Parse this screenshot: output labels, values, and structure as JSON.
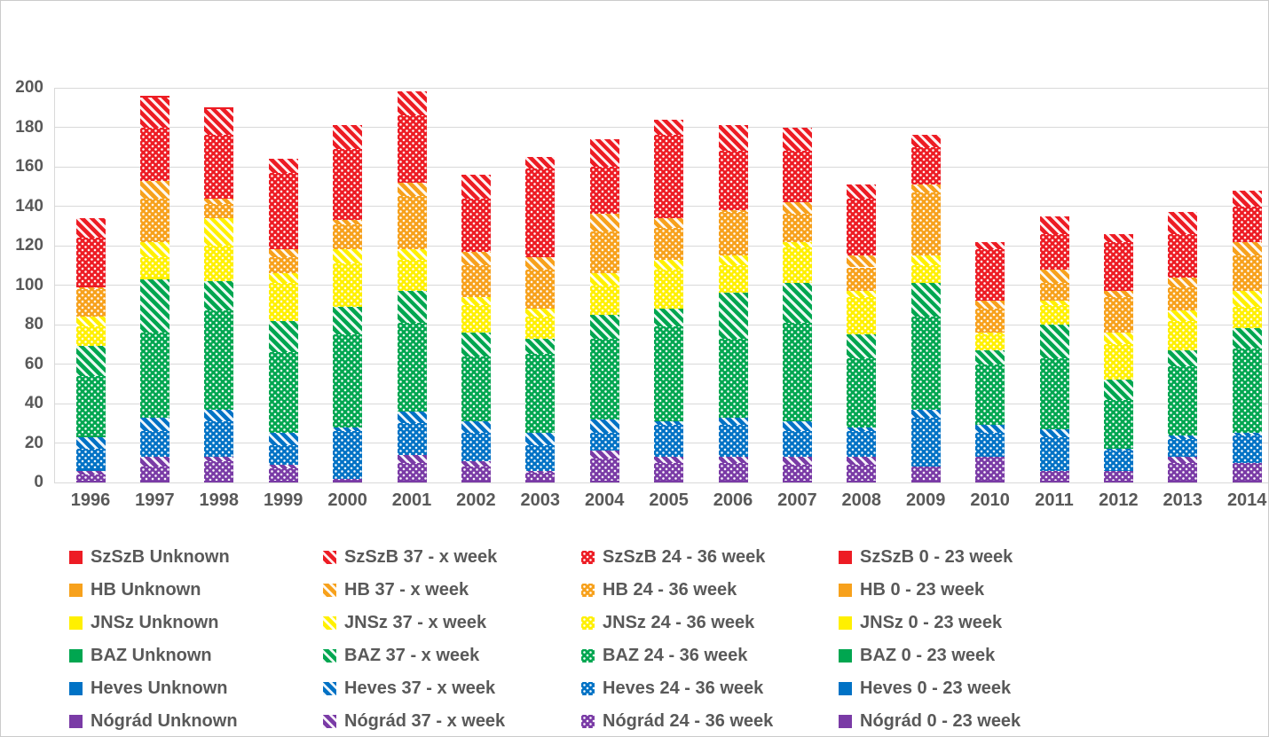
{
  "chart_data": {
    "type": "bar",
    "stacked": true,
    "title": "",
    "xlabel": "",
    "ylabel": "",
    "x": [
      "1996",
      "1997",
      "1998",
      "1999",
      "2000",
      "2001",
      "2002",
      "2003",
      "2004",
      "2005",
      "2006",
      "2007",
      "2008",
      "2009",
      "2010",
      "2011",
      "2012",
      "2013",
      "2014"
    ],
    "ylim": [
      0,
      200
    ],
    "ytick_step": 20,
    "y_ticks": [
      "0",
      "20",
      "40",
      "60",
      "80",
      "100",
      "120",
      "140",
      "160",
      "180",
      "200"
    ],
    "grid": true,
    "legend_position": "bottom",
    "segment_labels": {
      "unknown": "Unknown",
      "w37x": "37 - x week",
      "w2436": "24 - 36 week",
      "w023": "0 - 23 week"
    },
    "legend_column_order": [
      "unknown",
      "w37x",
      "w2436",
      "w023"
    ],
    "segment_order_bottom_up": [
      "w023",
      "w2436",
      "w37x",
      "unknown"
    ],
    "patterns": {
      "unknown": "solid",
      "w37x": "stripes",
      "w2436": "dots",
      "w023": "solid"
    },
    "counties": [
      {
        "id": "szszb",
        "label": "SzSzB",
        "color": "#ed1c24",
        "values": {
          "unknown": [
            0,
            1,
            1,
            0,
            0,
            0,
            0,
            0,
            0,
            0,
            0,
            0,
            0,
            0,
            0,
            0,
            0,
            0,
            0
          ],
          "w37x": [
            10,
            15,
            13,
            7,
            12,
            12,
            12,
            6,
            14,
            8,
            13,
            12,
            7,
            6,
            4,
            9,
            4,
            11,
            8
          ],
          "w2436": [
            24,
            27,
            32,
            39,
            36,
            34,
            27,
            45,
            24,
            42,
            30,
            26,
            29,
            19,
            26,
            18,
            25,
            22,
            18
          ],
          "w023": [
            1,
            0,
            0,
            0,
            0,
            0,
            0,
            0,
            0,
            0,
            0,
            0,
            0,
            0,
            0,
            0,
            0,
            0,
            0
          ]
        }
      },
      {
        "id": "hb",
        "label": "HB",
        "color": "#f7a11c",
        "values": {
          "unknown": [
            0,
            0,
            0,
            0,
            0,
            0,
            0,
            0,
            0,
            0,
            0,
            0,
            0,
            0,
            0,
            0,
            0,
            0,
            0
          ],
          "w37x": [
            1,
            9,
            3,
            4,
            2,
            7,
            7,
            6,
            9,
            5,
            1,
            6,
            6,
            4,
            4,
            7,
            3,
            5,
            7
          ],
          "w2436": [
            14,
            22,
            7,
            8,
            13,
            27,
            16,
            20,
            21,
            16,
            22,
            14,
            12,
            32,
            12,
            9,
            18,
            12,
            18
          ],
          "w023": [
            0,
            0,
            0,
            0,
            0,
            0,
            0,
            0,
            0,
            0,
            0,
            0,
            0,
            0,
            0,
            0,
            0,
            0,
            0
          ]
        }
      },
      {
        "id": "jnsz",
        "label": "JNSz",
        "color": "#fff000",
        "values": {
          "unknown": [
            0,
            0,
            0,
            0,
            0,
            0,
            0,
            0,
            0,
            0,
            0,
            0,
            0,
            0,
            0,
            0,
            0,
            0,
            0
          ],
          "w37x": [
            5,
            8,
            14,
            5,
            7,
            5,
            4,
            4,
            6,
            5,
            5,
            3,
            3,
            5,
            1,
            2,
            6,
            5,
            8
          ],
          "w2436": [
            10,
            10,
            18,
            19,
            22,
            16,
            14,
            11,
            15,
            20,
            14,
            18,
            19,
            9,
            8,
            10,
            18,
            15,
            11
          ],
          "w023": [
            0,
            1,
            0,
            0,
            0,
            0,
            0,
            0,
            0,
            0,
            0,
            0,
            0,
            0,
            0,
            0,
            0,
            0,
            0
          ]
        }
      },
      {
        "id": "baz",
        "label": "BAZ",
        "color": "#00a650",
        "values": {
          "unknown": [
            0,
            0,
            0,
            0,
            0,
            0,
            0,
            0,
            0,
            0,
            0,
            0,
            0,
            0,
            0,
            0,
            0,
            0,
            0
          ],
          "w37x": [
            15,
            27,
            15,
            16,
            14,
            16,
            12,
            8,
            12,
            9,
            23,
            20,
            12,
            17,
            7,
            17,
            10,
            8,
            10
          ],
          "w2436": [
            30,
            43,
            50,
            41,
            47,
            45,
            33,
            40,
            41,
            48,
            40,
            50,
            35,
            47,
            31,
            36,
            25,
            35,
            43
          ],
          "w023": [
            1,
            0,
            0,
            0,
            0,
            0,
            0,
            0,
            0,
            0,
            0,
            0,
            0,
            0,
            0,
            0,
            0,
            0,
            0
          ]
        }
      },
      {
        "id": "heves",
        "label": "Heves",
        "color": "#0072c5",
        "values": {
          "unknown": [
            0,
            0,
            0,
            0,
            0,
            0,
            0,
            0,
            0,
            0,
            0,
            0,
            0,
            0,
            0,
            0,
            0,
            0,
            0
          ],
          "w37x": [
            6,
            7,
            6,
            6,
            2,
            6,
            6,
            6,
            7,
            2,
            4,
            5,
            2,
            4,
            4,
            4,
            1,
            2,
            1
          ],
          "w2436": [
            10,
            13,
            18,
            10,
            24,
            16,
            14,
            13,
            9,
            16,
            16,
            13,
            13,
            25,
            12,
            17,
            10,
            9,
            14
          ],
          "w023": [
            1,
            0,
            0,
            0,
            0,
            0,
            0,
            0,
            0,
            0,
            0,
            0,
            0,
            0,
            0,
            0,
            0,
            0,
            0
          ]
        }
      },
      {
        "id": "nograd",
        "label": "Nógrád",
        "color": "#7a3ba6",
        "values": {
          "unknown": [
            0,
            0,
            0,
            0,
            0,
            0,
            0,
            0,
            0,
            0,
            0,
            0,
            0,
            0,
            0,
            0,
            0,
            0,
            0
          ],
          "w37x": [
            2,
            5,
            2,
            2,
            0,
            4,
            3,
            1,
            4,
            3,
            3,
            4,
            4,
            0,
            0,
            0,
            0,
            3,
            0
          ],
          "w2436": [
            3,
            7,
            10,
            6,
            1,
            9,
            7,
            4,
            11,
            9,
            9,
            8,
            8,
            7,
            12,
            5,
            5,
            9,
            9
          ],
          "w023": [
            1,
            1,
            1,
            1,
            1,
            1,
            1,
            1,
            1,
            1,
            1,
            1,
            1,
            1,
            1,
            1,
            1,
            1,
            1
          ]
        }
      }
    ]
  },
  "colors": {
    "grid": "#d9d9d9",
    "axis_text": "#595959",
    "background": "#ffffff",
    "border": "#cbcbcb"
  }
}
